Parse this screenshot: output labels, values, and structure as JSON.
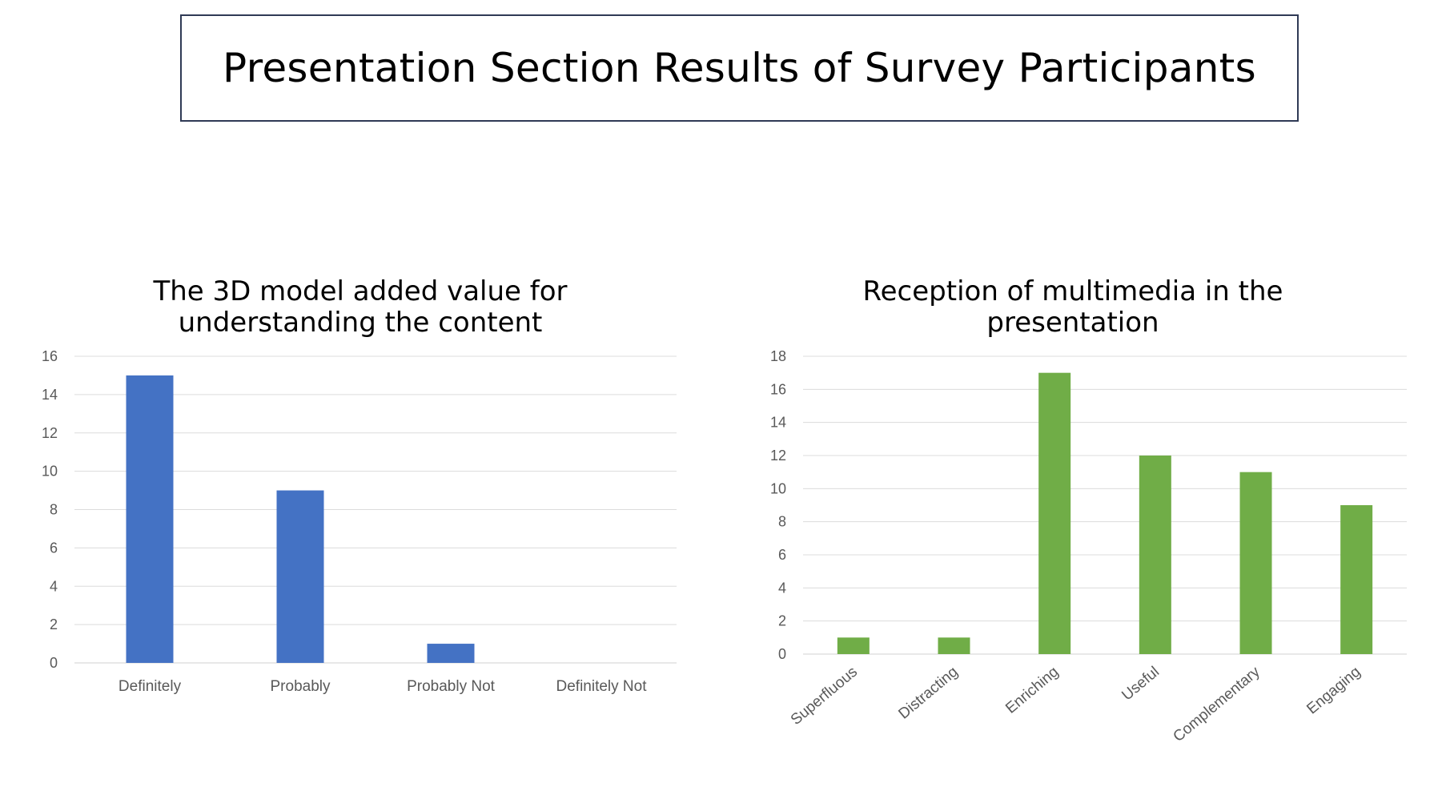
{
  "page_title": "Presentation Section Results of Survey Participants",
  "chart_data": [
    {
      "type": "bar",
      "title_lines": [
        "The 3D model added value for",
        "understanding the content"
      ],
      "categories": [
        "Definitely",
        "Probably",
        "Probably Not",
        "Definitely Not"
      ],
      "values": [
        15,
        9,
        1,
        0
      ],
      "ylim": [
        0,
        16
      ],
      "yticks": [
        0,
        2,
        4,
        6,
        8,
        10,
        12,
        14,
        16
      ],
      "grid": true,
      "color": "#4472c4"
    },
    {
      "type": "bar",
      "title_lines": [
        "Reception of multimedia in the",
        "presentation"
      ],
      "categories": [
        "Superfluous",
        "Distracting",
        "Enriching",
        "Useful",
        "Complementary",
        "Engaging"
      ],
      "values": [
        1,
        1,
        17,
        12,
        11,
        9
      ],
      "ylim": [
        0,
        18
      ],
      "yticks": [
        0,
        2,
        4,
        6,
        8,
        10,
        12,
        14,
        16,
        18
      ],
      "grid": true,
      "color": "#70ad47"
    }
  ]
}
